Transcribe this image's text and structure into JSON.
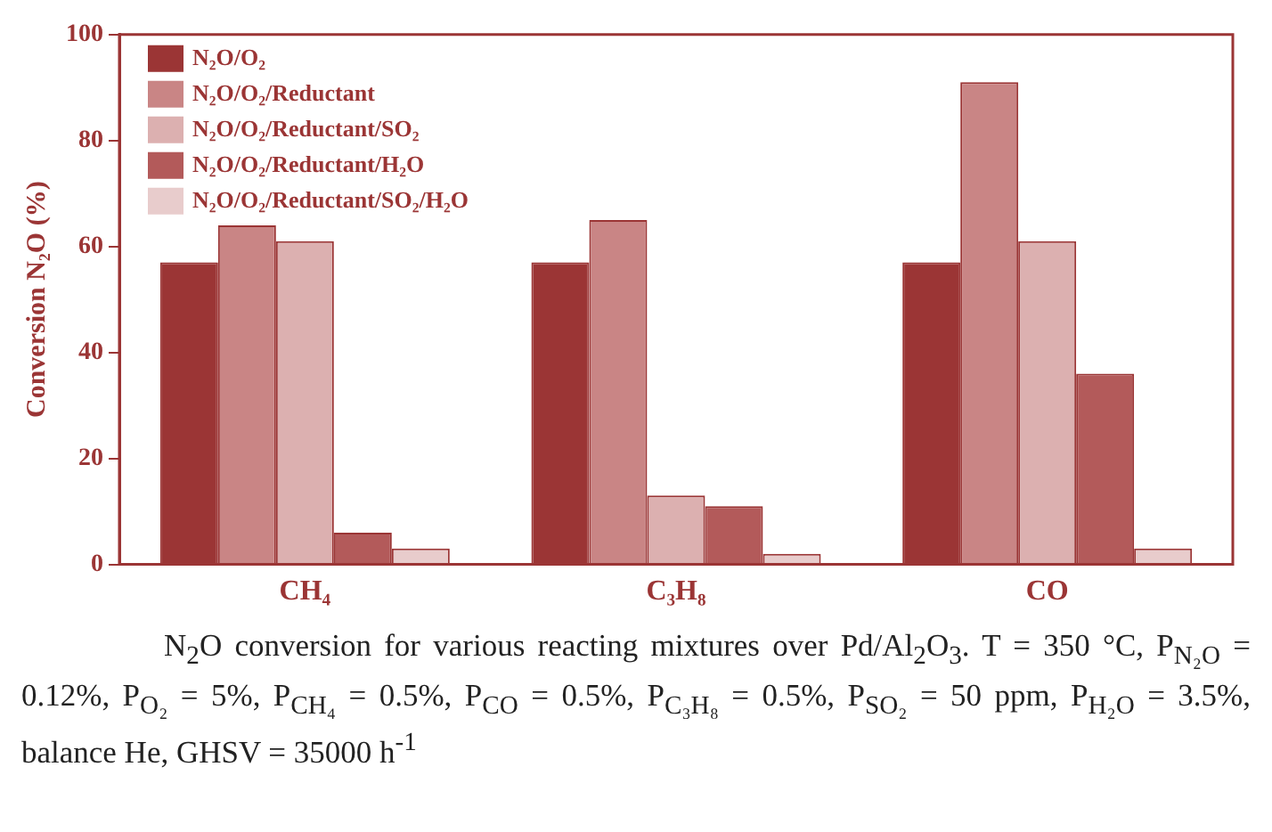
{
  "chart_data": {
    "type": "bar",
    "ylabel": "Conversion N₂O (%)",
    "categories": [
      "CH₄",
      "C₃H₈",
      "CO"
    ],
    "series": [
      {
        "name": "N₂O/O₂",
        "color": "#9b3535",
        "values": [
          57,
          57,
          57
        ]
      },
      {
        "name": "N₂O/O₂/Reductant",
        "color": "#c98585",
        "values": [
          64,
          65,
          91
        ]
      },
      {
        "name": "N₂O/O₂/Reductant/SO₂",
        "color": "#dcb0b0",
        "values": [
          61,
          13,
          61
        ]
      },
      {
        "name": "N₂O/O₂/Reductant/H₂O",
        "color": "#b35a5a",
        "values": [
          6,
          11,
          36
        ]
      },
      {
        "name": "N₂O/O₂/Reductant/SO₂/H₂O",
        "color": "#e8cccc",
        "values": [
          3,
          2,
          3
        ]
      }
    ],
    "ylim": [
      0,
      100
    ],
    "yticks": [
      0,
      20,
      40,
      60,
      80,
      100
    ],
    "grid": false,
    "legend": "top left",
    "annotations": [
      "N$_{2}$O conversion for various reacting mixtures over Pd/Al$_{2}$O$_{3}$. T = 350 °C, P$_{N₂O}$ = 0.12%, P$_{O₂}$ = 5%, P$_{CH₄}$ = 0.5%, P$_{CO}$ = 0.5%, P$_{C₃H₈}$ = 0.5%, P$_{SO₂}$ = 50 ppm, P$_{H₂O}$ = 3.5%, balance He, GHSV = 35000 h$^{-1}$"
    ]
  }
}
